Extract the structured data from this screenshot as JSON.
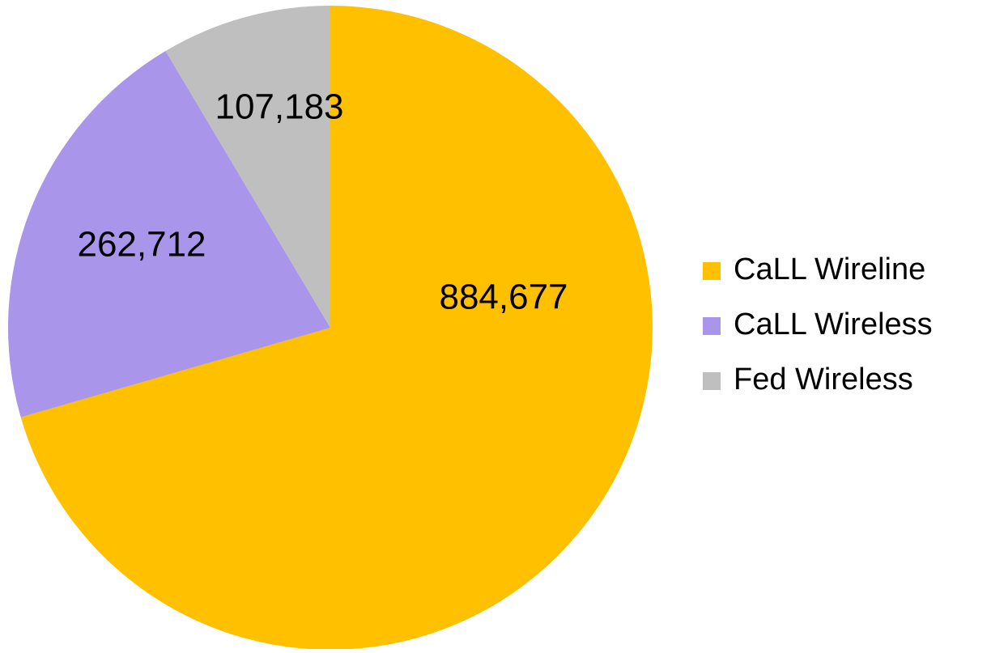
{
  "chart_data": {
    "type": "pie",
    "categories": [
      "CaLL Wireline",
      "CaLL Wireless",
      "Fed Wireless"
    ],
    "values": [
      884677,
      262712,
      107183
    ],
    "value_labels": [
      "884,677",
      "262,712",
      "107,183"
    ],
    "colors": [
      "#FFC000",
      "#A995EA",
      "#BFBFBF"
    ],
    "legend": "right"
  }
}
